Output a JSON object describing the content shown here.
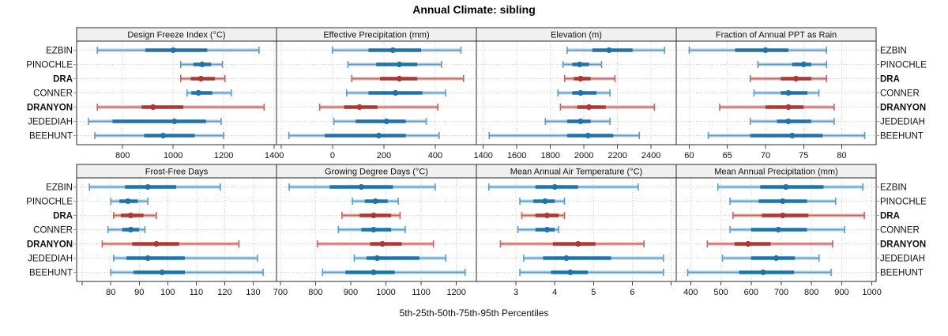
{
  "title": "Annual Climate: sibling",
  "caption": "5th-25th-50th-75th-95th Percentiles",
  "sites": [
    "EZBIN",
    "PINOCHLE",
    "DRA",
    "CONNER",
    "DRANYON",
    "JEDEDIAH",
    "BEEHUNT"
  ],
  "emphasized_sites": [
    "DRA",
    "DRANYON"
  ],
  "percentiles": [
    5,
    25,
    50,
    75,
    95
  ],
  "colors": {
    "blue": {
      "dark": "#1b73b0",
      "mid": "#569dc8",
      "light": "#a9cce4"
    },
    "red": {
      "dark": "#b23530",
      "mid": "#c9625b",
      "light": "#e2aaa6"
    },
    "grid": "#c8c8c8",
    "panel_border": "#2a2a2a",
    "strip_bg": "#f0f0f0",
    "tick": "#444444",
    "text": "#111111"
  },
  "site_colors": {
    "EZBIN": "blue",
    "PINOCHLE": "blue",
    "DRA": "red",
    "CONNER": "blue",
    "DRANYON": "red",
    "JEDEDIAH": "blue",
    "BEEHUNT": "blue"
  },
  "chart_data": [
    {
      "type": "dotplot-percentiles",
      "row": 0,
      "col": 0,
      "title": "Design Freeze Index (°C)",
      "xlim": [
        618,
        1409
      ],
      "ticks": [
        {
          "v": 800,
          "label": "800"
        },
        {
          "v": 1000,
          "label": "1000"
        },
        {
          "v": 1200,
          "label": "1200"
        },
        {
          "v": 1400,
          "label": "1400"
        }
      ],
      "values": {
        "EZBIN": [
          700,
          890,
          1000,
          1135,
          1340
        ],
        "PINOCHLE": [
          1030,
          1080,
          1115,
          1150,
          1195
        ],
        "DRA": [
          1030,
          1070,
          1110,
          1165,
          1205
        ],
        "CONNER": [
          1055,
          1072,
          1100,
          1155,
          1230
        ],
        "DRANYON": [
          700,
          875,
          920,
          1040,
          1360
        ],
        "JEDEDIAH": [
          665,
          760,
          1005,
          1130,
          1190
        ],
        "BEEHUNT": [
          690,
          885,
          960,
          1085,
          1200
        ]
      }
    },
    {
      "type": "dotplot-percentiles",
      "row": 0,
      "col": 1,
      "title": "Effective Precipitation (mm)",
      "xlim": [
        -218,
        560
      ],
      "ticks": [
        {
          "v": -200,
          "label": ""
        },
        {
          "v": 0,
          "label": "0"
        },
        {
          "v": 200,
          "label": "200"
        },
        {
          "v": 400,
          "label": "400"
        }
      ],
      "values": {
        "EZBIN": [
          0,
          140,
          235,
          345,
          500
        ],
        "PINOCHLE": [
          60,
          170,
          260,
          330,
          425
        ],
        "DRA": [
          75,
          185,
          260,
          330,
          510
        ],
        "CONNER": [
          55,
          140,
          245,
          350,
          440
        ],
        "DRANYON": [
          -50,
          45,
          105,
          175,
          410
        ],
        "JEDEDIAH": [
          5,
          90,
          210,
          285,
          365
        ],
        "BEEHUNT": [
          -170,
          -30,
          180,
          285,
          415
        ]
      }
    },
    {
      "type": "dotplot-percentiles",
      "row": 0,
      "col": 2,
      "title": "Elevation (m)",
      "xlim": [
        1359,
        2550
      ],
      "ticks": [
        {
          "v": 1400,
          "label": "1400"
        },
        {
          "v": 1600,
          "label": "1600"
        },
        {
          "v": 1800,
          "label": "1800"
        },
        {
          "v": 2000,
          "label": "2000"
        },
        {
          "v": 2200,
          "label": "2200"
        },
        {
          "v": 2400,
          "label": "2400"
        }
      ],
      "values": {
        "EZBIN": [
          1900,
          2050,
          2150,
          2290,
          2480
        ],
        "PINOCHLE": [
          1875,
          1930,
          1975,
          2030,
          2105
        ],
        "DRA": [
          1885,
          1940,
          1980,
          2040,
          2185
        ],
        "CONNER": [
          1845,
          1930,
          1980,
          2075,
          2155
        ],
        "DRANYON": [
          1860,
          1960,
          2030,
          2130,
          2420
        ],
        "JEDEDIAH": [
          1770,
          1900,
          1980,
          2040,
          2155
        ],
        "BEEHUNT": [
          1435,
          1900,
          2025,
          2175,
          2330
        ]
      }
    },
    {
      "type": "dotplot-percentiles",
      "row": 0,
      "col": 3,
      "title": "Fraction of Annual PPT as Rain",
      "xlim": [
        58.3,
        84.5
      ],
      "ticks": [
        {
          "v": 60,
          "label": "60"
        },
        {
          "v": 65,
          "label": "65"
        },
        {
          "v": 70,
          "label": "70"
        },
        {
          "v": 75,
          "label": "75"
        },
        {
          "v": 80,
          "label": "80"
        }
      ],
      "values": {
        "EZBIN": [
          60,
          66,
          70,
          73,
          78
        ],
        "PINOCHLE": [
          69,
          73.5,
          75,
          76,
          78
        ],
        "DRA": [
          68,
          72,
          74,
          76,
          78
        ],
        "CONNER": [
          68.5,
          72,
          73,
          75.5,
          77
        ],
        "DRANYON": [
          64,
          70,
          73,
          75,
          79
        ],
        "JEDEDIAH": [
          68,
          71.5,
          73,
          76,
          79
        ],
        "BEEHUNT": [
          62.5,
          68,
          73.5,
          77.5,
          83
        ]
      }
    },
    {
      "type": "dotplot-percentiles",
      "row": 1,
      "col": 0,
      "title": "Frost-Free Days",
      "xlim": [
        68,
        138.2
      ],
      "ticks": [
        {
          "v": 70,
          "label": ""
        },
        {
          "v": 80,
          "label": "80"
        },
        {
          "v": 90,
          "label": "90"
        },
        {
          "v": 100,
          "label": "100"
        },
        {
          "v": 110,
          "label": "110"
        },
        {
          "v": 120,
          "label": "120"
        },
        {
          "v": 130,
          "label": "130"
        }
      ],
      "values": {
        "EZBIN": [
          72.5,
          85,
          93,
          103,
          118.5
        ],
        "PINOCHLE": [
          80,
          83,
          86,
          89.5,
          93
        ],
        "DRA": [
          81,
          83.5,
          87,
          91.5,
          96
        ],
        "CONNER": [
          79,
          84,
          87,
          90,
          92
        ],
        "DRANYON": [
          77,
          87.5,
          96,
          104,
          125
        ],
        "JEDEDIAH": [
          81,
          85.5,
          93,
          106,
          131.5
        ],
        "BEEHUNT": [
          80,
          88,
          98,
          106,
          133.5
        ]
      }
    },
    {
      "type": "dotplot-percentiles",
      "row": 1,
      "col": 1,
      "title": "Growing Degree Days (°C)",
      "xlim": [
        689,
        1257
      ],
      "ticks": [
        {
          "v": 700,
          "label": "700"
        },
        {
          "v": 800,
          "label": "800"
        },
        {
          "v": 900,
          "label": "900"
        },
        {
          "v": 1000,
          "label": "1000"
        },
        {
          "v": 1100,
          "label": "1100"
        },
        {
          "v": 1200,
          "label": "1200"
        }
      ],
      "values": {
        "EZBIN": [
          725,
          840,
          930,
          1020,
          1140
        ],
        "PINOCHLE": [
          905,
          940,
          970,
          1005,
          1035
        ],
        "DRA": [
          875,
          925,
          965,
          1015,
          1040
        ],
        "CONNER": [
          865,
          930,
          965,
          1015,
          1055
        ],
        "DRANYON": [
          805,
          955,
          990,
          1045,
          1135
        ],
        "JEDEDIAH": [
          910,
          945,
          975,
          1095,
          1170
        ],
        "BEEHUNT": [
          820,
          885,
          965,
          1025,
          1225
        ]
      }
    },
    {
      "type": "dotplot-percentiles",
      "row": 1,
      "col": 2,
      "title": "Mean Annual Air Temperature (°C)",
      "xlim": [
        1.98,
        7.13
      ],
      "ticks": [
        {
          "v": 3,
          "label": "3"
        },
        {
          "v": 4,
          "label": "4"
        },
        {
          "v": 5,
          "label": "5"
        },
        {
          "v": 6,
          "label": "6"
        },
        {
          "v": 7,
          "label": ""
        }
      ],
      "values": {
        "EZBIN": [
          2.3,
          3.5,
          4.0,
          4.6,
          6.15
        ],
        "PINOCHLE": [
          3.1,
          3.45,
          3.75,
          4.0,
          4.25
        ],
        "DRA": [
          3.15,
          3.5,
          3.8,
          4.1,
          4.25
        ],
        "CONNER": [
          3.05,
          3.5,
          3.8,
          4.0,
          4.1
        ],
        "DRANYON": [
          2.6,
          3.95,
          4.6,
          5.05,
          6.3
        ],
        "JEDEDIAH": [
          3.2,
          3.7,
          4.3,
          5.45,
          6.8
        ],
        "BEEHUNT": [
          3.1,
          3.9,
          4.4,
          4.85,
          6.8
        ]
      }
    },
    {
      "type": "dotplot-percentiles",
      "row": 1,
      "col": 3,
      "title": "Mean Annual Precipitation (mm)",
      "xlim": [
        352,
        1014
      ],
      "ticks": [
        {
          "v": 400,
          "label": "400"
        },
        {
          "v": 500,
          "label": "500"
        },
        {
          "v": 600,
          "label": "600"
        },
        {
          "v": 700,
          "label": "700"
        },
        {
          "v": 800,
          "label": "800"
        },
        {
          "v": 900,
          "label": "900"
        },
        {
          "v": 1000,
          "label": "1000"
        }
      ],
      "values": {
        "EZBIN": [
          490,
          630,
          715,
          840,
          970
        ],
        "PINOCHLE": [
          530,
          625,
          705,
          785,
          880
        ],
        "DRA": [
          540,
          635,
          705,
          790,
          975
        ],
        "CONNER": [
          530,
          600,
          690,
          785,
          910
        ],
        "DRANYON": [
          455,
          545,
          590,
          665,
          870
        ],
        "JEDEDIAH": [
          505,
          600,
          683,
          745,
          825
        ],
        "BEEHUNT": [
          390,
          560,
          640,
          742,
          865
        ]
      }
    }
  ]
}
